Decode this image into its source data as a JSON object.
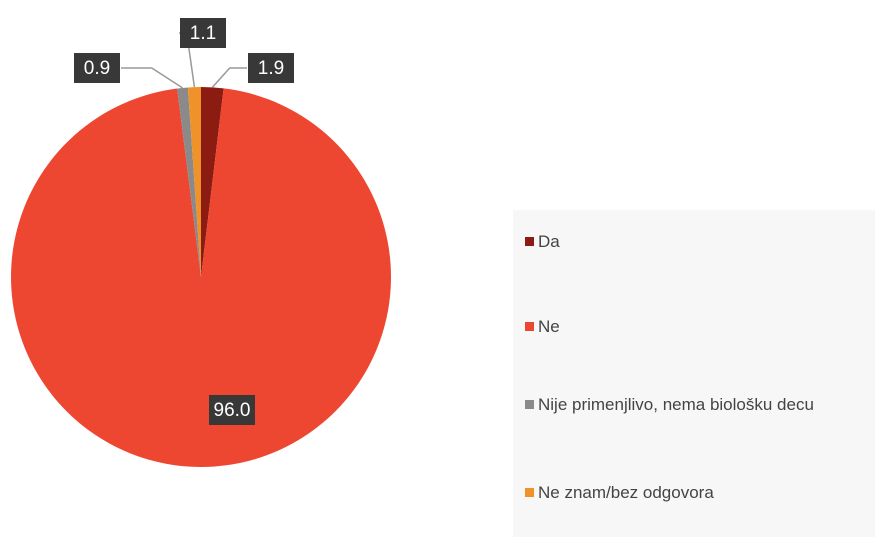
{
  "chart_data": {
    "type": "pie",
    "categories": [
      "Da",
      "Ne",
      "Nije primenjlivo, nema biološku decu",
      "Ne znam/bez odgovora"
    ],
    "values": [
      1.9,
      96.0,
      0.9,
      1.1
    ],
    "value_labels": [
      "1.9",
      "96.0",
      "0.9",
      "1.1"
    ],
    "colors": [
      "#8c1c12",
      "#ee4731",
      "#8a8a8a",
      "#f0922a"
    ],
    "legend": "right"
  }
}
